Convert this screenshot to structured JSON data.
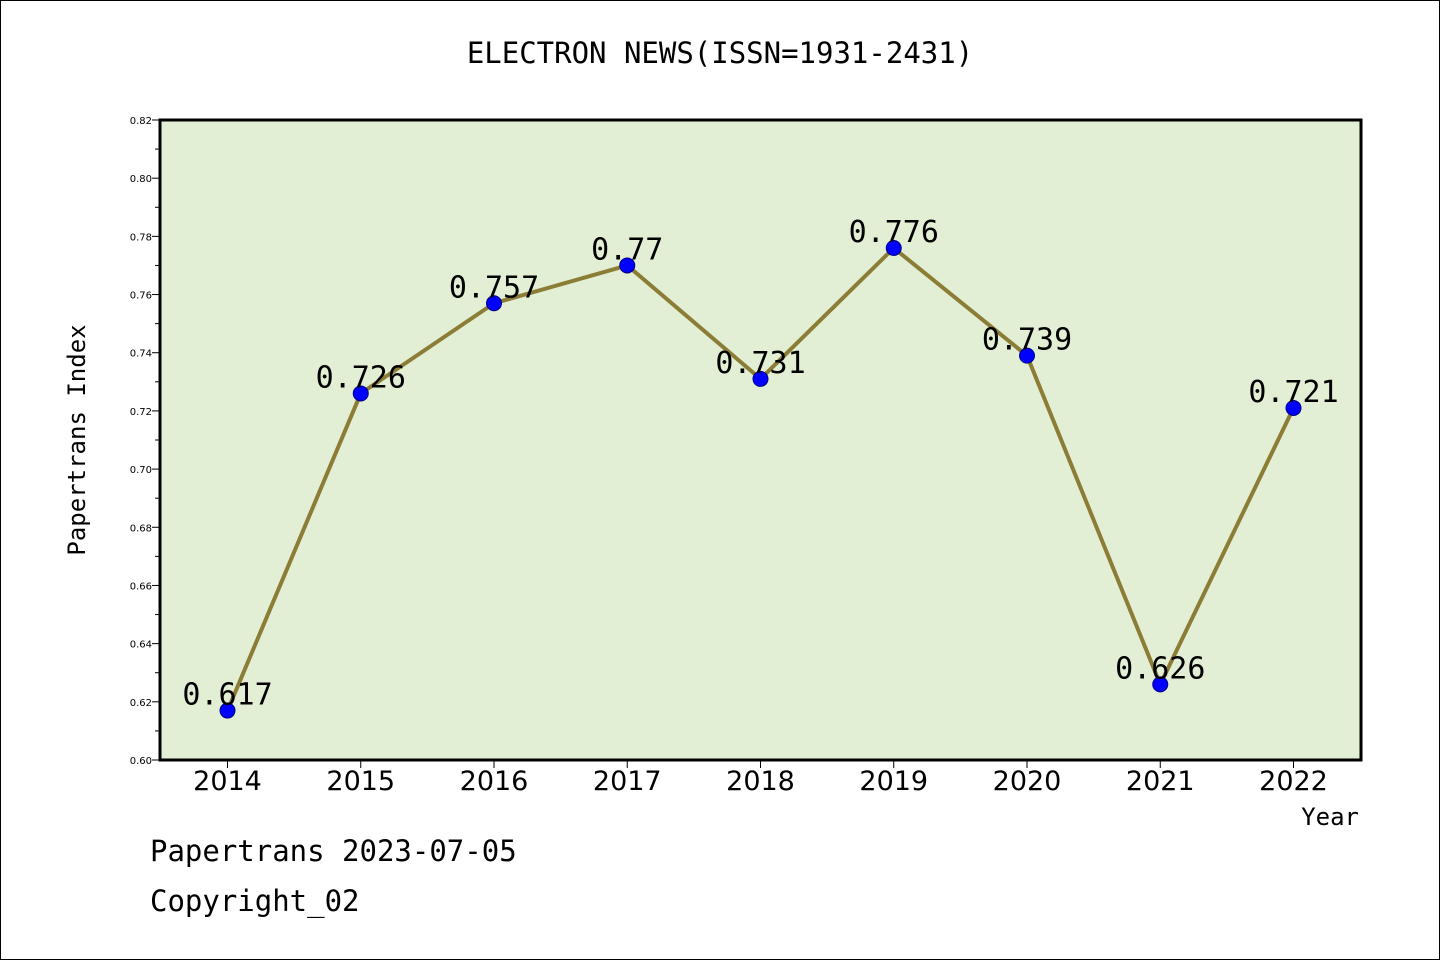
{
  "chart_data": {
    "type": "line",
    "title": "ELECTRON NEWS(ISSN=1931-2431)",
    "xlabel": "Year",
    "ylabel": "Papertrans Index",
    "x": [
      "2014",
      "2015",
      "2016",
      "2017",
      "2018",
      "2019",
      "2020",
      "2021",
      "2022"
    ],
    "series": [
      {
        "values": [
          0.617,
          0.726,
          0.757,
          0.77,
          0.731,
          0.776,
          0.739,
          0.626,
          0.721
        ],
        "labels": [
          "0.617",
          "0.726",
          "0.757",
          "0.77",
          "0.731",
          "0.776",
          "0.739",
          "0.626",
          "0.721"
        ]
      }
    ],
    "ylim": [
      0.6,
      0.82
    ],
    "y_ticks": [
      "0.60",
      "0.62",
      "0.64",
      "0.66",
      "0.68",
      "0.70",
      "0.72",
      "0.74",
      "0.76",
      "0.78",
      "0.80",
      "0.82"
    ],
    "grid": false,
    "legend": "none",
    "colors": {
      "plot_background": "#e2efd4",
      "line": "#8c7d36",
      "marker": "#0000ff"
    }
  },
  "footer": {
    "date_text": "Papertrans 2023-07-05",
    "copyright_text": "Copyright_02"
  }
}
